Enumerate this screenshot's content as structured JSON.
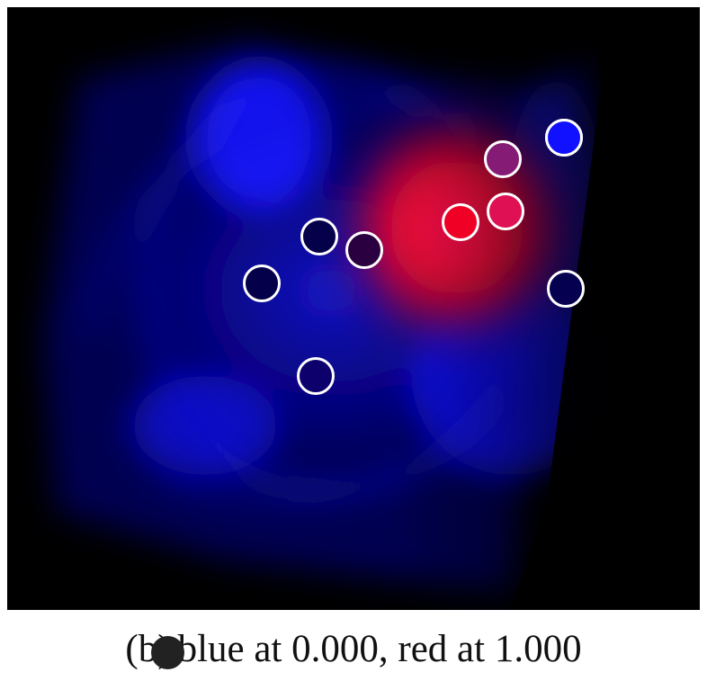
{
  "caption": {
    "label": "(b)",
    "text": "blue at 0.000, red at 1.000"
  },
  "image": {
    "description": "",
    "background_color": "#000000",
    "blue_color": "#1010ff",
    "red_color": "#ff1020",
    "marker_stroke": "#ffffff"
  },
  "markers": [
    {
      "name": "marker-1",
      "fill": "#05004a"
    },
    {
      "name": "marker-2",
      "fill": "#05004a"
    },
    {
      "name": "marker-3",
      "fill": "#2a0040"
    },
    {
      "name": "marker-4",
      "fill": "#0d006d"
    },
    {
      "name": "marker-5",
      "fill": "#04004c"
    },
    {
      "name": "marker-6",
      "fill": "#f00024"
    },
    {
      "name": "marker-7",
      "fill": "#df1053"
    },
    {
      "name": "marker-8",
      "fill": "#851b75"
    },
    {
      "name": "marker-9",
      "fill": "#1111ff"
    },
    {
      "name": "marker-10",
      "fill": "#05004f"
    }
  ],
  "cursor": {
    "icon": "cursor-dot-icon"
  }
}
